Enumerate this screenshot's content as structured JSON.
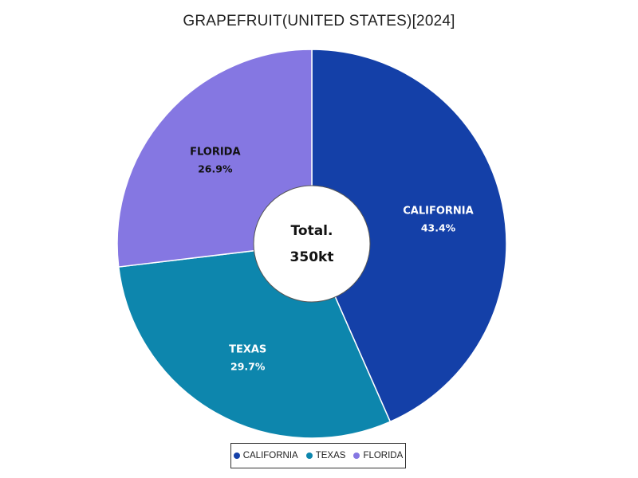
{
  "chart_data": {
    "type": "pie",
    "style": "donut",
    "title": "GRAPEFRUIT(UNITED STATES)[2024]",
    "center_label": {
      "line1": "Total.",
      "line2": "350kt"
    },
    "slices": [
      {
        "name": "CALIFORNIA",
        "percent": 43.4,
        "percent_label": "43.4%",
        "color": "#1440a8",
        "label_color": "#ffffff"
      },
      {
        "name": "TEXAS",
        "percent": 29.7,
        "percent_label": "29.7%",
        "color": "#0d86ad",
        "label_color": "#ffffff"
      },
      {
        "name": "FLORIDA",
        "percent": 26.9,
        "percent_label": "26.9%",
        "color": "#8577e2",
        "label_color": "#111111"
      }
    ],
    "start_angle": "top",
    "direction": "clockwise",
    "legend_placement": "bottom-center"
  }
}
